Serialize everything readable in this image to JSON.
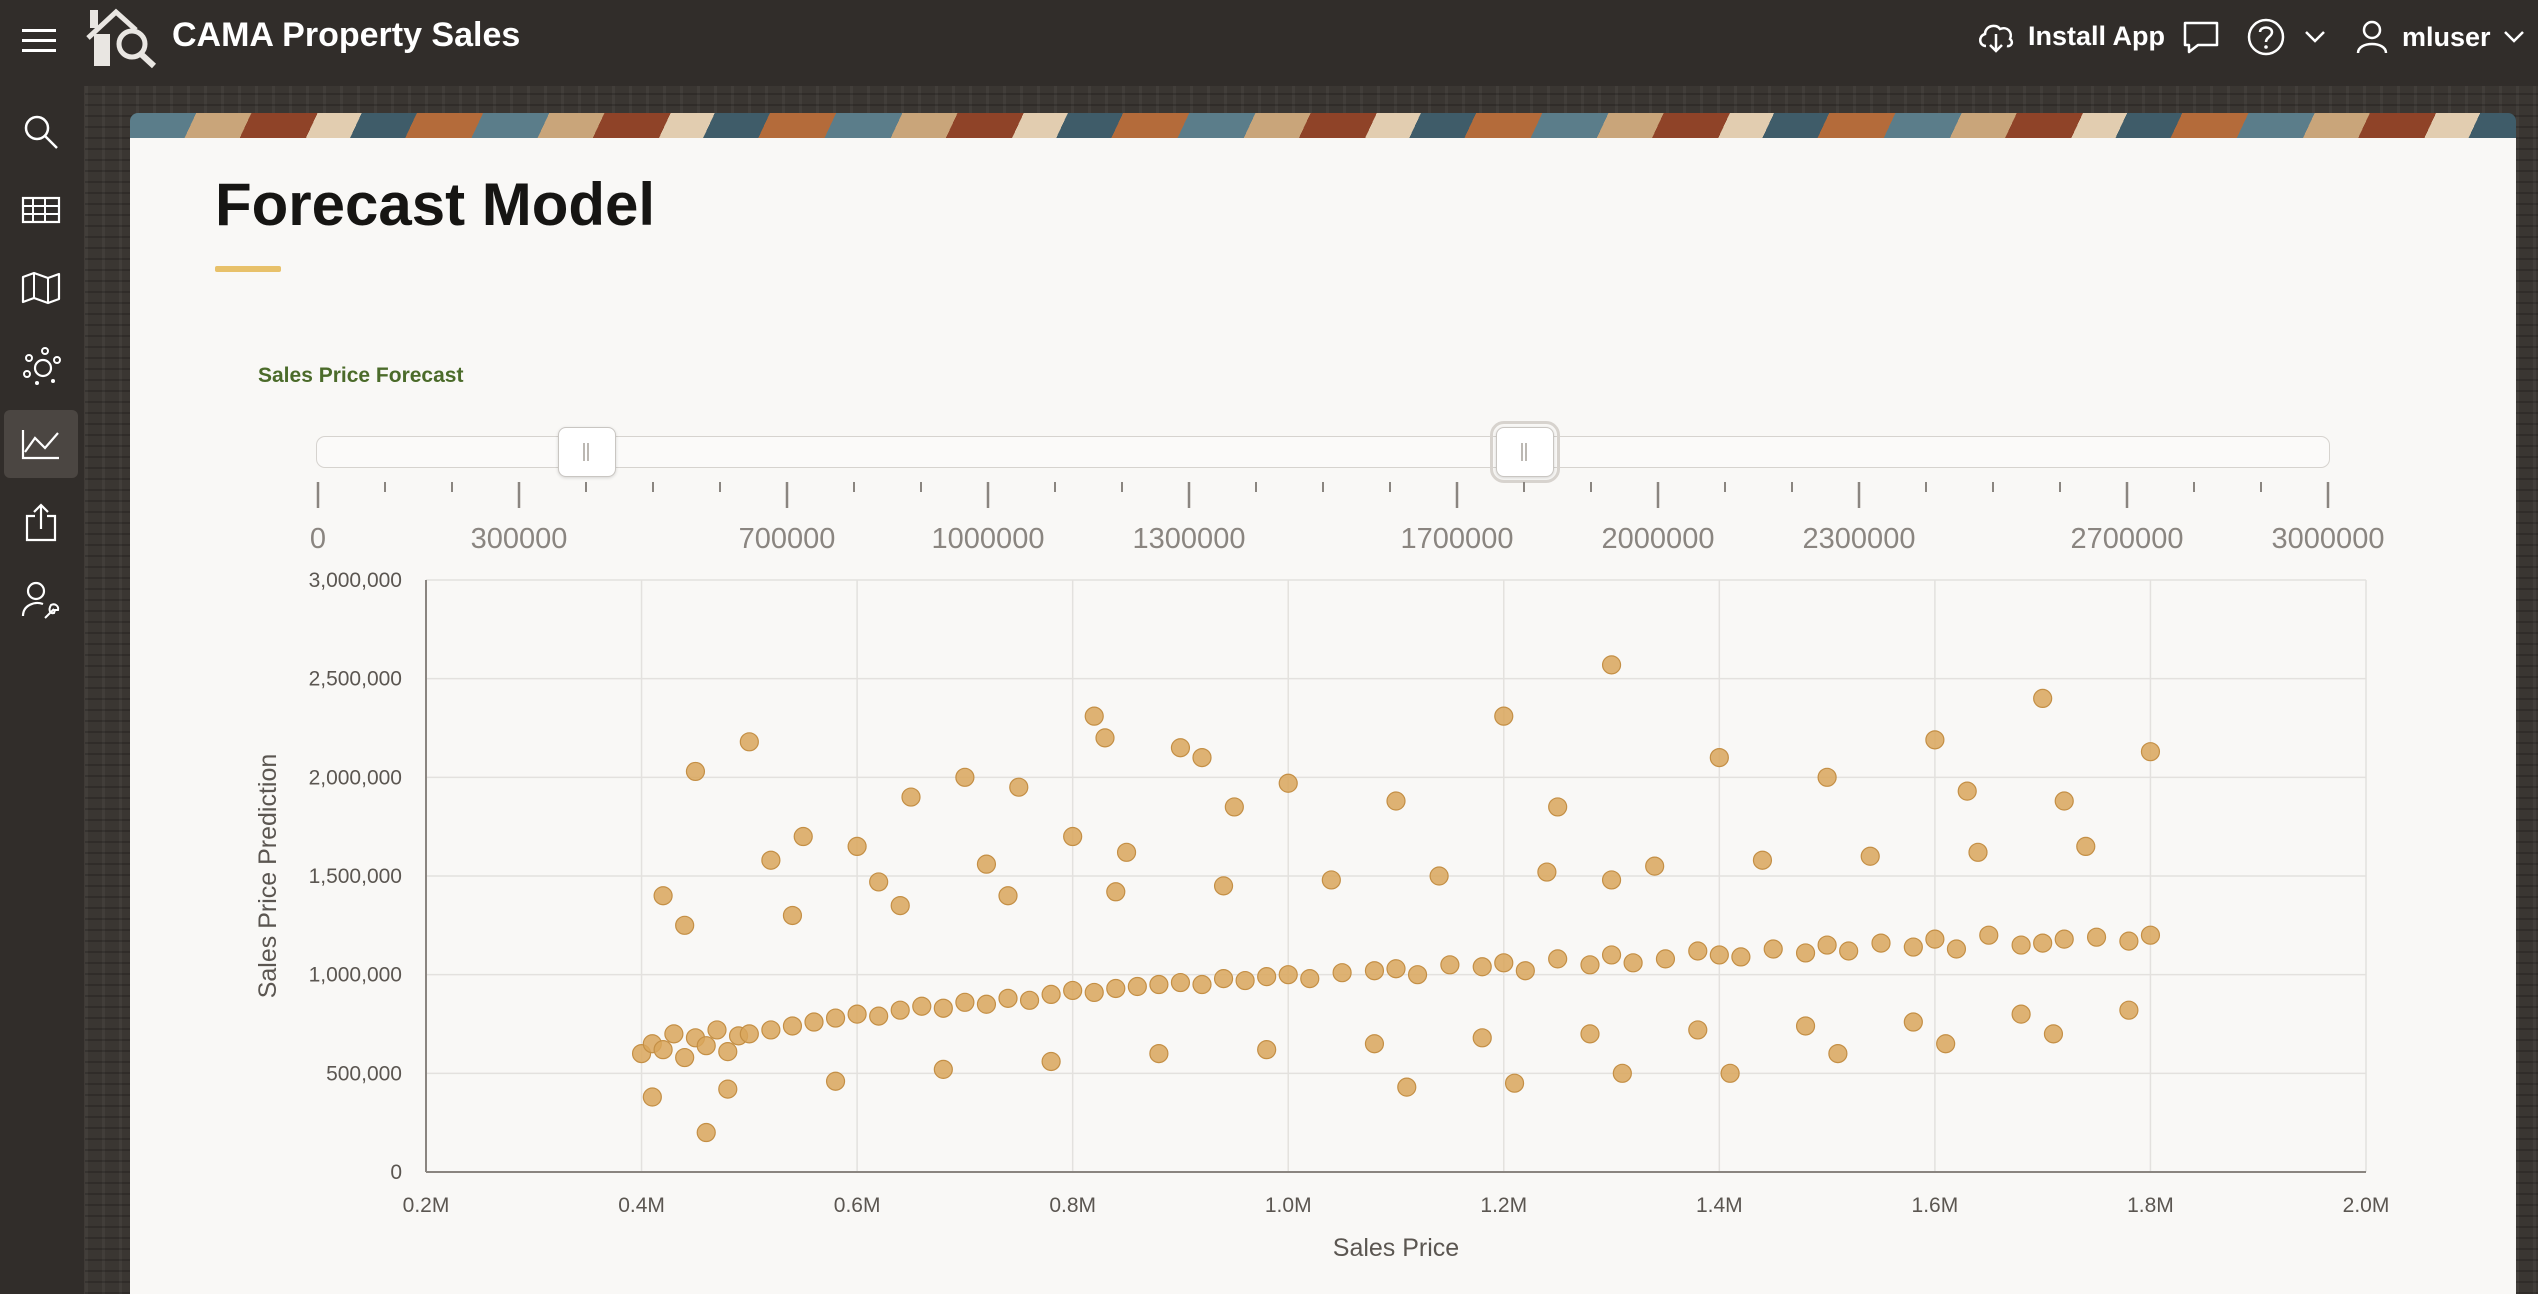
{
  "header": {
    "app_title": "CAMA Property Sales",
    "install_label": "Install App",
    "username": "mluser",
    "icons": [
      "hamburger-icon",
      "house-search-logo-icon",
      "cloud-download-icon",
      "chat-icon",
      "help-icon",
      "chevron-down-icon",
      "user-icon"
    ]
  },
  "sidenav": {
    "items": [
      {
        "icon": "search-icon",
        "active": false
      },
      {
        "icon": "table-icon",
        "active": false
      },
      {
        "icon": "map-icon",
        "active": false
      },
      {
        "icon": "cluster-icon",
        "active": false
      },
      {
        "icon": "line-chart-icon",
        "active": true
      },
      {
        "icon": "upload-icon",
        "active": false
      },
      {
        "icon": "user-wrench-icon",
        "active": false
      }
    ]
  },
  "page": {
    "title": "Forecast Model",
    "accent_color": "#e8c16a"
  },
  "region": {
    "label": "Sales Price Forecast"
  },
  "range_slider": {
    "min": 0,
    "max": 3000000,
    "value_low": 400000,
    "value_high": 1800000,
    "tick_labels": [
      "0",
      "300000",
      "700000",
      "1000000",
      "1300000",
      "1700000",
      "2000000",
      "2300000",
      "2700000",
      "3000000"
    ],
    "tick_values": [
      0,
      300000,
      700000,
      1000000,
      1300000,
      1700000,
      2000000,
      2300000,
      2700000,
      3000000
    ]
  },
  "chart_data": {
    "type": "scatter",
    "xlabel": "Sales Price",
    "ylabel": "Sales Price Prediction",
    "xlim": [
      200000,
      2000000
    ],
    "ylim": [
      0,
      3000000
    ],
    "x_tick_labels": [
      "0.2M",
      "0.4M",
      "0.6M",
      "0.8M",
      "1.0M",
      "1.2M",
      "1.4M",
      "1.6M",
      "1.8M",
      "2.0M"
    ],
    "y_tick_labels": [
      "0",
      "500,000",
      "1,000,000",
      "1,500,000",
      "2,000,000",
      "2,500,000",
      "3,000,000"
    ],
    "grid": true,
    "marker_color": "#d9a65c",
    "series": [
      {
        "x": [
          400000,
          410000,
          420000,
          430000,
          440000,
          450000,
          460000,
          470000,
          480000,
          490000,
          500000,
          520000,
          540000,
          560000,
          580000,
          600000,
          620000,
          640000,
          660000,
          680000,
          700000,
          720000,
          740000,
          760000,
          780000,
          800000,
          820000,
          840000,
          860000,
          880000,
          900000,
          920000,
          940000,
          960000,
          980000,
          1000000,
          1020000,
          1050000,
          1080000,
          1100000,
          1120000,
          1150000,
          1180000,
          1200000,
          1220000,
          1250000,
          1280000,
          1300000,
          1320000,
          1350000,
          1380000,
          1400000,
          1420000,
          1450000,
          1480000,
          1500000,
          1520000,
          1550000,
          1580000,
          1600000,
          1620000,
          1650000,
          1680000,
          1700000,
          1720000,
          1750000,
          1780000,
          1800000,
          450000,
          500000,
          550000,
          600000,
          650000,
          700000,
          750000,
          800000,
          850000,
          900000,
          950000,
          1000000,
          1100000,
          1200000,
          1300000,
          1400000,
          1500000,
          1600000,
          1700000,
          1800000,
          420000,
          520000,
          620000,
          720000,
          820000,
          920000,
          1250000,
          1300000,
          1720000,
          1630000,
          830000,
          460000,
          1210000,
          1110000,
          1310000,
          1410000,
          1510000,
          1610000,
          1710000,
          410000,
          480000,
          580000,
          680000,
          780000,
          880000,
          980000,
          1080000,
          1180000,
          1280000,
          1380000,
          1480000,
          1580000,
          1680000,
          1780000,
          440000,
          540000,
          640000,
          740000,
          840000,
          940000,
          1040000,
          1140000,
          1240000,
          1340000,
          1440000,
          1540000,
          1640000,
          1740000
        ],
        "y": [
          600000,
          650000,
          620000,
          700000,
          580000,
          680000,
          640000,
          720000,
          610000,
          690000,
          700000,
          720000,
          740000,
          760000,
          780000,
          800000,
          790000,
          820000,
          840000,
          830000,
          860000,
          850000,
          880000,
          870000,
          900000,
          920000,
          910000,
          930000,
          940000,
          950000,
          960000,
          950000,
          980000,
          970000,
          990000,
          1000000,
          980000,
          1010000,
          1020000,
          1030000,
          1000000,
          1050000,
          1040000,
          1060000,
          1020000,
          1080000,
          1050000,
          1100000,
          1060000,
          1080000,
          1120000,
          1100000,
          1090000,
          1130000,
          1110000,
          1150000,
          1120000,
          1160000,
          1140000,
          1180000,
          1130000,
          1200000,
          1150000,
          1160000,
          1180000,
          1190000,
          1170000,
          1200000,
          2030000,
          2180000,
          1700000,
          1650000,
          1900000,
          2000000,
          1950000,
          1700000,
          1620000,
          2150000,
          1850000,
          1970000,
          1880000,
          2310000,
          2570000,
          2100000,
          2000000,
          2190000,
          2400000,
          2130000,
          1400000,
          1580000,
          1470000,
          1560000,
          2310000,
          2100000,
          1850000,
          1480000,
          1880000,
          1930000,
          2200000,
          200000,
          450000,
          430000,
          500000,
          500000,
          600000,
          650000,
          700000,
          380000,
          420000,
          460000,
          520000,
          560000,
          600000,
          620000,
          650000,
          680000,
          700000,
          720000,
          740000,
          760000,
          800000,
          820000,
          1250000,
          1300000,
          1350000,
          1400000,
          1420000,
          1450000,
          1480000,
          1500000,
          1520000,
          1550000,
          1580000,
          1600000,
          1620000,
          1650000
        ]
      }
    ]
  }
}
